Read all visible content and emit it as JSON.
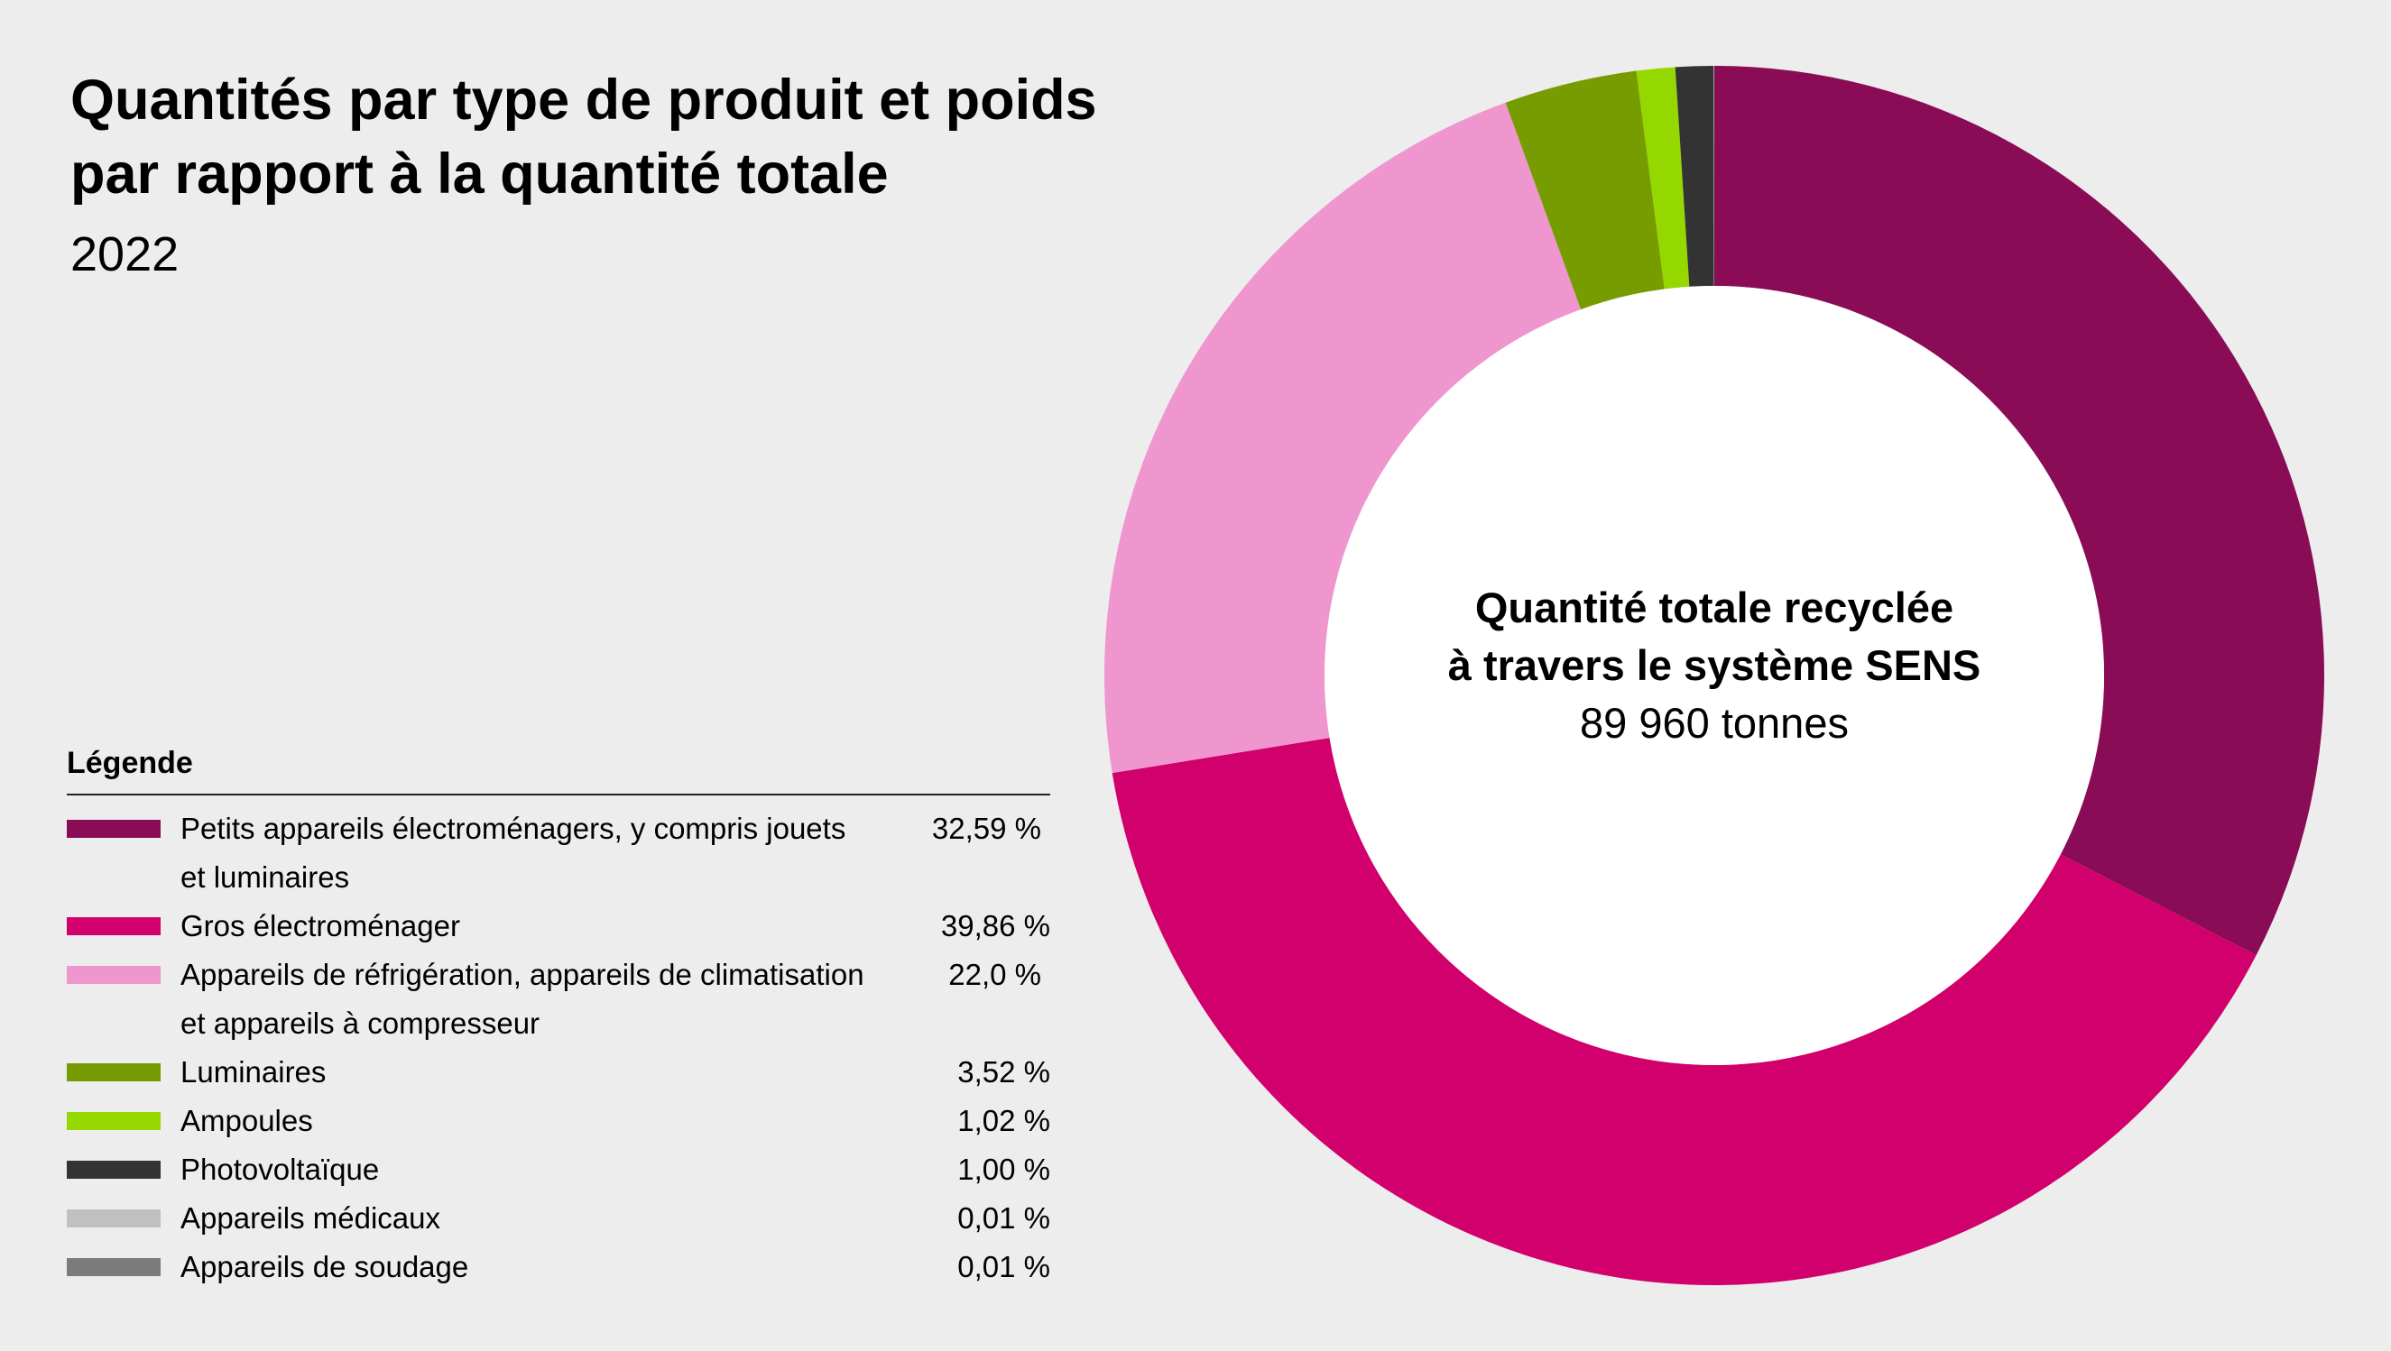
{
  "title_line1": "Quantités par type de produit et poids",
  "title_line2": "par rapport à la quantité totale",
  "subtitle": "2022",
  "legend_title": "Légende",
  "center_label_line1": "Quantité totale recyclée",
  "center_label_line2": "à travers le système SENS",
  "center_value": "89 960 tonnes",
  "chart_data": {
    "type": "pie",
    "title": "Quantités par type de produit et poids par rapport à la quantité totale",
    "subtitle": "2022",
    "categories": [
      "Petits appareils électroménagers, y compris jouets et luminaires",
      "Gros électroménager",
      "Appareils de réfrigération, appareils de climatisation et appareils à compresseur",
      "Luminaires",
      "Ampoules",
      "Photovoltaïque",
      "Appareils médicaux",
      "Appareils de soudage"
    ],
    "values": [
      32.59,
      39.86,
      22.0,
      3.52,
      1.02,
      1.0,
      0.01,
      0.01
    ],
    "value_labels": [
      "32,59 %",
      "39,86 %",
      "22,0 %",
      "3,52 %",
      "1,02 %",
      "1,00 %",
      "0,01 %",
      "0,01 %"
    ],
    "colors": [
      "#8a0c57",
      "#d1006c",
      "#ef96cf",
      "#769c00",
      "#95d800",
      "#333333",
      "#c0c0c0",
      "#7b7b7b"
    ],
    "legend_position": "bottom-left",
    "donut": true,
    "center_total": "89 960 tonnes"
  },
  "legend": [
    {
      "line1": "Petits appareils électroménagers, y compris jouets",
      "line2": "et luminaires",
      "value": "32,59 %"
    },
    {
      "line1": "Gros électroménager",
      "line2": "",
      "value": "39,86 %"
    },
    {
      "line1": "Appareils de réfrigération, appareils de climatisation",
      "line2": "et appareils à compresseur",
      "value": "22,0 %"
    },
    {
      "line1": "Luminaires",
      "line2": "",
      "value": "3,52 %"
    },
    {
      "line1": "Ampoules",
      "line2": "",
      "value": "1,02 %"
    },
    {
      "line1": "Photovoltaïque",
      "line2": "",
      "value": "1,00 %"
    },
    {
      "line1": "Appareils médicaux",
      "line2": "",
      "value": "0,01 %"
    },
    {
      "line1": "Appareils de soudage",
      "line2": "",
      "value": "0,01 %"
    }
  ]
}
